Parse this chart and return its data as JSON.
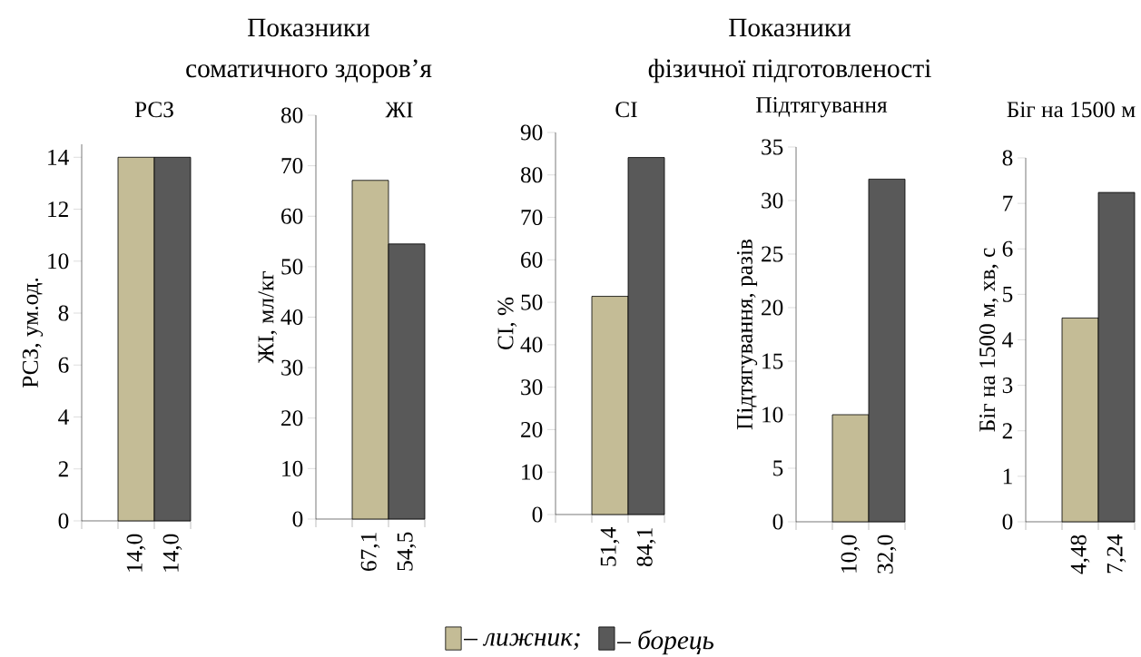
{
  "chart_data": [
    {
      "type": "bar",
      "title": "РСЗ",
      "ylabel": "РСЗ, ум.од.",
      "annotations": [
        "Показники",
        "соматичного здоров’я"
      ],
      "legend": "bottom",
      "categories": [
        "14,0",
        "14,0"
      ],
      "ylim": [
        0,
        14.5
      ],
      "yticks": [
        0,
        2,
        4,
        6,
        8,
        10,
        12,
        14
      ],
      "series": [
        {
          "name": "– лижник;",
          "color": "#c4bc96",
          "values": [
            14.0,
            null
          ]
        },
        {
          "name": "– борець",
          "color": "#595959",
          "values": [
            null,
            14.0
          ]
        }
      ]
    },
    {
      "type": "bar",
      "title": "ЖІ",
      "ylabel": "ЖІ, мл/кг",
      "categories": [
        "67,1",
        "54,5"
      ],
      "ylim": [
        0,
        80
      ],
      "yticks": [
        0,
        10,
        20,
        30,
        40,
        50,
        60,
        70,
        80
      ],
      "series": [
        {
          "color": "#c4bc96",
          "values": [
            67.1,
            null
          ]
        },
        {
          "color": "#595959",
          "values": [
            null,
            54.5
          ]
        }
      ]
    },
    {
      "type": "bar",
      "title": "СІ",
      "ylabel": "СІ, %",
      "categories": [
        "51,4",
        "84,1"
      ],
      "ylim": [
        0,
        90
      ],
      "yticks": [
        0,
        10,
        20,
        30,
        40,
        50,
        60,
        70,
        80,
        90
      ],
      "series": [
        {
          "color": "#c4bc96",
          "values": [
            51.4,
            null
          ]
        },
        {
          "color": "#595959",
          "values": [
            null,
            84.1
          ]
        }
      ]
    },
    {
      "type": "bar",
      "title": "Підтягування",
      "ylabel": "Підтягування, разів",
      "annotations": [
        "Показники",
        "фізичної підготовленості"
      ],
      "categories": [
        "10,0",
        "32,0"
      ],
      "ylim": [
        0,
        35
      ],
      "yticks": [
        0,
        5,
        10,
        15,
        20,
        25,
        30,
        35
      ],
      "series": [
        {
          "color": "#c4bc96",
          "values": [
            10.0,
            null
          ]
        },
        {
          "color": "#595959",
          "values": [
            null,
            32.0
          ]
        }
      ]
    },
    {
      "type": "bar",
      "title": "Біг на 1500 м",
      "ylabel": "Біг на 1500 м, хв, с",
      "categories": [
        "4,48",
        "7,24"
      ],
      "ylim": [
        0,
        8
      ],
      "yticks": [
        0,
        1,
        2,
        3,
        4,
        5,
        6,
        7,
        8
      ],
      "series": [
        {
          "color": "#c4bc96",
          "values": [
            4.48,
            null
          ]
        },
        {
          "color": "#595959",
          "values": [
            null,
            7.24
          ]
        }
      ]
    }
  ]
}
